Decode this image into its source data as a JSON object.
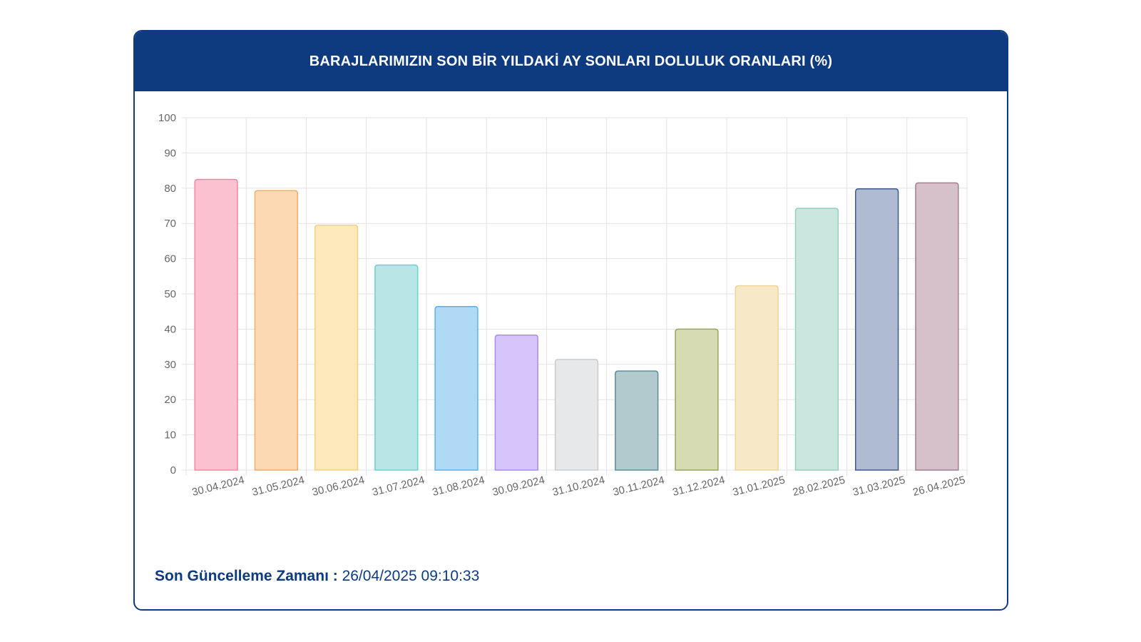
{
  "card": {
    "title": "BARAJLARIMIZIN SON BİR YILDAKİ AY SONLARI DOLULUK ORANLARI (%)"
  },
  "footer": {
    "label": "Son Güncelleme Zamanı :",
    "value": "26/04/2025 09:10:33"
  },
  "colors": {
    "header_bg": "#0e3b7f",
    "border": "#0e3b7f",
    "grid": "#e3e3e3"
  },
  "chart_data": {
    "type": "bar",
    "ylim": [
      0,
      100
    ],
    "yticks": [
      "0",
      "10",
      "20",
      "30",
      "40",
      "50",
      "60",
      "70",
      "80",
      "90",
      "100"
    ],
    "grid": true,
    "categories": [
      "30.04.2024",
      "31.05.2024",
      "30.06.2024",
      "31.07.2024",
      "31.08.2024",
      "30.09.2024",
      "31.10.2024",
      "30.11.2024",
      "31.12.2024",
      "31.01.2025",
      "28.02.2025",
      "31.03.2025",
      "26.04.2025"
    ],
    "values": [
      82.5,
      79.3,
      69.5,
      58.2,
      46.4,
      38.3,
      31.4,
      28.1,
      40.0,
      52.3,
      74.3,
      79.8,
      81.5
    ],
    "fill_colors": [
      "#fcc1d1",
      "#fdd9b3",
      "#fde9bc",
      "#b8e6e6",
      "#b0d9f6",
      "#d5c5fb",
      "#e7e8ea",
      "#b2c9ce",
      "#d6dbb4",
      "#f7e9c8",
      "#cbe6df",
      "#aebbd0",
      "#d6c0c9"
    ],
    "border_colors": [
      "#f2889f",
      "#f0ad6e",
      "#f3d27a",
      "#6fcfcf",
      "#5fb0e8",
      "#a98af2",
      "#c8cacd",
      "#5f8e98",
      "#9aa65d",
      "#eed496",
      "#93cfbf",
      "#3f5a8a",
      "#a67d8d"
    ]
  }
}
